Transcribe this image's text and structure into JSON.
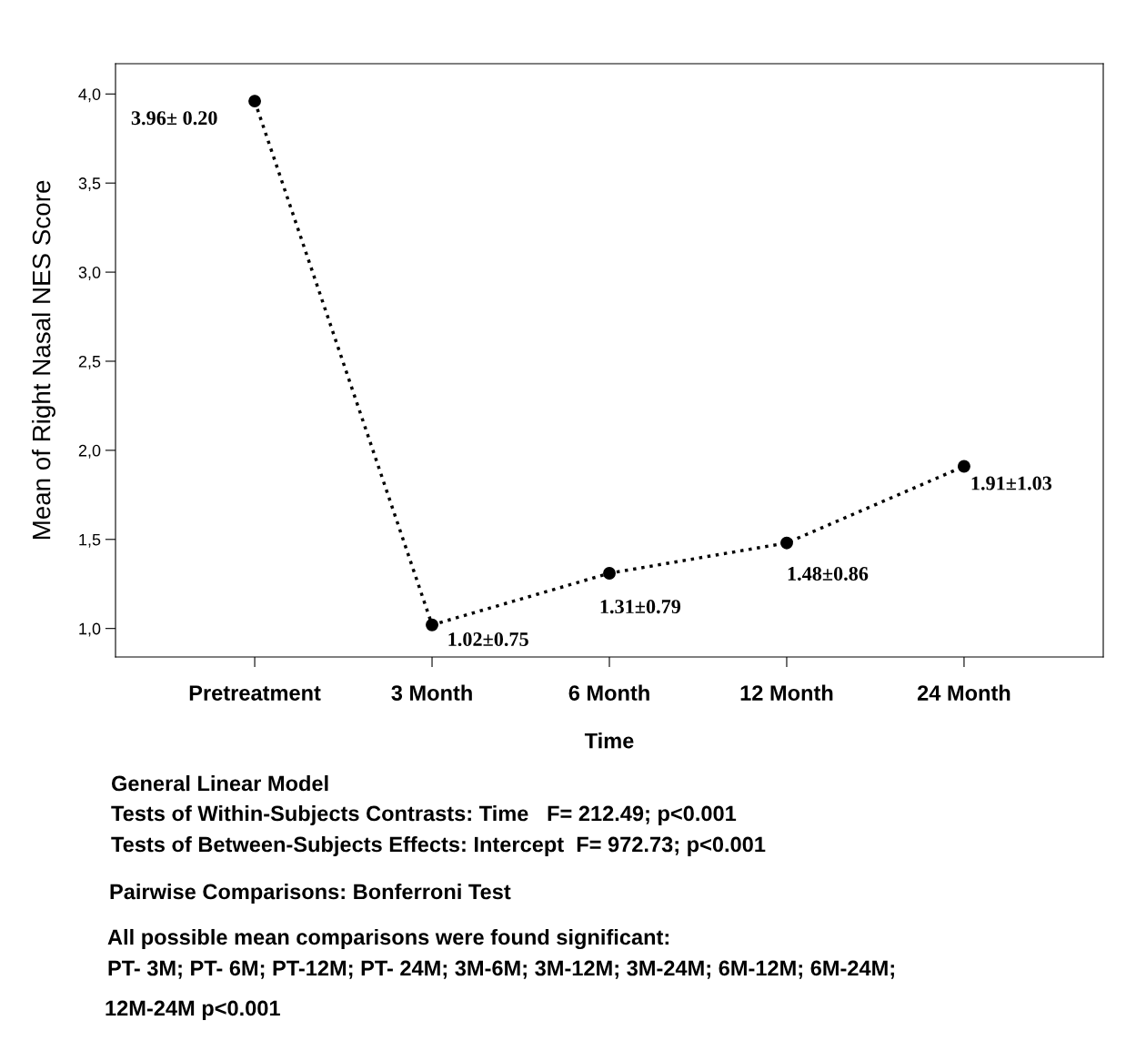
{
  "chart_data": {
    "type": "line",
    "xlabel": "Time",
    "ylabel": "Mean of Right Nasal NES Score",
    "categories": [
      "Pretreatment",
      "3 Month",
      "6 Month",
      "12 Month",
      "24 Month"
    ],
    "series": [
      {
        "color": "#000000",
        "values": [
          3.96,
          1.02,
          1.31,
          1.48,
          1.91
        ],
        "value_labels": [
          "3.96± 0.20",
          "1.02±0.75",
          "1.31±0.79",
          "1.48±0.86",
          "1.91±1.03"
        ]
      }
    ],
    "ylim": [
      0.84,
      4.17
    ],
    "yticks": [
      {
        "value": 1.0,
        "label": "1,0"
      },
      {
        "value": 1.5,
        "label": "1,5"
      },
      {
        "value": 2.0,
        "label": "2,0"
      },
      {
        "value": 2.5,
        "label": "2,5"
      },
      {
        "value": 3.0,
        "label": "3,0"
      },
      {
        "value": 3.5,
        "label": "3,5"
      },
      {
        "value": 4.0,
        "label": "4,0"
      }
    ],
    "marker": "circle",
    "line_style": "dotted",
    "grid": false,
    "legend": false,
    "annotations": [
      "General Linear Model",
      "Tests of Within-Subjects Contrasts: Time   F= 212.49; p<0.001",
      "Tests of Between-Subjects Effects: Intercept  F= 972.73; p<0.001",
      "Pairwise Comparisons: Bonferroni Test",
      "All possible mean comparisons were found significant:",
      "PT- 3M; PT- 6M; PT-12M; PT- 24M; 3M-6M; 3M-12M; 3M-24M; 6M-12M; 6M-24M;",
      "12M-24M p<0.001"
    ]
  }
}
